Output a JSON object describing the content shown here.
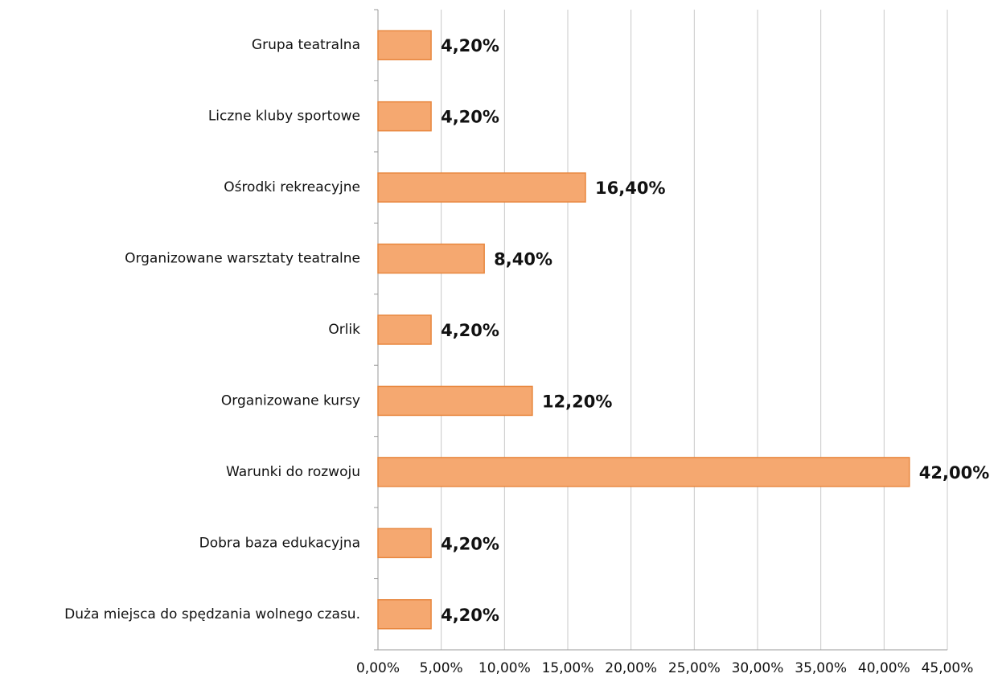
{
  "chart_data": {
    "type": "hbar",
    "categories": [
      "Grupa teatralna",
      "Liczne kluby sportowe",
      "Ośrodki rekreacyjne",
      "Organizowane warsztaty teatralne",
      "Orlik",
      "Organizowane kursy",
      "Warunki do rozwoju",
      "Dobra baza edukacyjna",
      "Duża miejsca do spędzania wolnego czasu."
    ],
    "values": [
      4.2,
      4.2,
      16.4,
      8.4,
      4.2,
      12.2,
      42,
      4.2,
      4.2
    ],
    "value_labels": [
      "4,20%",
      "4,20%",
      "16,40%",
      "8,40%",
      "4,20%",
      "12,20%",
      "42,00%",
      "4,20%",
      "4,20%"
    ],
    "color": "#f5a870",
    "xlim": [
      0,
      45
    ],
    "xticks": [
      {
        "value": 0,
        "label": "0,00%"
      },
      {
        "value": 5,
        "label": "5,00%"
      },
      {
        "value": 10,
        "label": "10,00%"
      },
      {
        "value": 15,
        "label": "15,00%"
      },
      {
        "value": 20,
        "label": "20,00%"
      },
      {
        "value": 25,
        "label": "25,00%"
      },
      {
        "value": 30,
        "label": "30,00%"
      },
      {
        "value": 35,
        "label": "35,00%"
      },
      {
        "value": 40,
        "label": "40,00%"
      },
      {
        "value": 45,
        "label": "45,00%"
      }
    ],
    "grid": true
  }
}
